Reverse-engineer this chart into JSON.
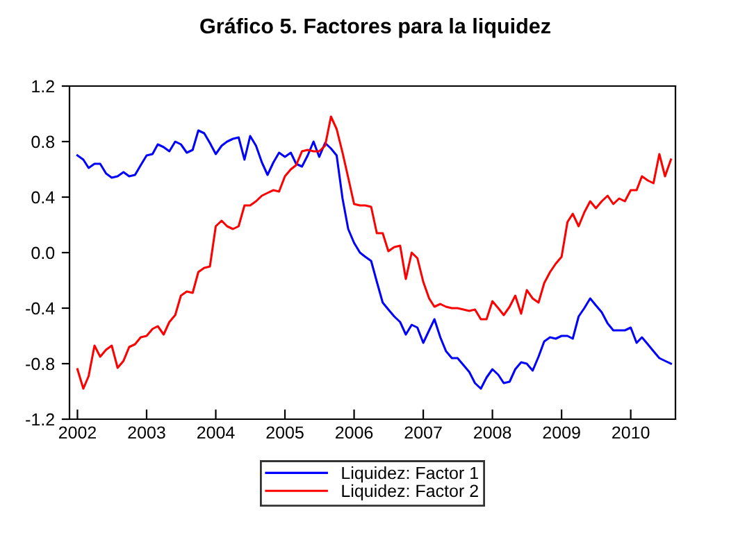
{
  "chart_data": {
    "type": "line",
    "title": "Gráfico 5. Factores para la liquidez",
    "x": [
      "2002-01",
      "2002-02",
      "2002-03",
      "2002-04",
      "2002-05",
      "2002-06",
      "2002-07",
      "2002-08",
      "2002-09",
      "2002-10",
      "2002-11",
      "2002-12",
      "2003-01",
      "2003-02",
      "2003-03",
      "2003-04",
      "2003-05",
      "2003-06",
      "2003-07",
      "2003-08",
      "2003-09",
      "2003-10",
      "2003-11",
      "2003-12",
      "2004-01",
      "2004-02",
      "2004-03",
      "2004-04",
      "2004-05",
      "2004-06",
      "2004-07",
      "2004-08",
      "2004-09",
      "2004-10",
      "2004-11",
      "2004-12",
      "2005-01",
      "2005-02",
      "2005-03",
      "2005-04",
      "2005-05",
      "2005-06",
      "2005-07",
      "2005-08",
      "2005-09",
      "2005-10",
      "2005-11",
      "2005-12",
      "2006-01",
      "2006-02",
      "2006-03",
      "2006-04",
      "2006-05",
      "2006-06",
      "2006-07",
      "2006-08",
      "2006-09",
      "2006-10",
      "2006-11",
      "2006-12",
      "2007-01",
      "2007-02",
      "2007-03",
      "2007-04",
      "2007-05",
      "2007-06",
      "2007-07",
      "2007-08",
      "2007-09",
      "2007-10",
      "2007-11",
      "2007-12",
      "2008-01",
      "2008-02",
      "2008-03",
      "2008-04",
      "2008-05",
      "2008-06",
      "2008-07",
      "2008-08",
      "2008-09",
      "2008-10",
      "2008-11",
      "2008-12",
      "2009-01",
      "2009-02",
      "2009-03",
      "2009-04",
      "2009-05",
      "2009-06",
      "2009-07",
      "2009-08",
      "2009-09",
      "2009-10",
      "2009-11",
      "2009-12",
      "2010-01",
      "2010-02",
      "2010-03",
      "2010-04",
      "2010-05",
      "2010-06",
      "2010-07",
      "2010-08"
    ],
    "series": [
      {
        "name": "Liquidez: Factor 1",
        "color": "#0000ff",
        "values": [
          0.7,
          0.67,
          0.61,
          0.64,
          0.64,
          0.57,
          0.54,
          0.55,
          0.58,
          0.55,
          0.56,
          0.63,
          0.7,
          0.71,
          0.78,
          0.76,
          0.73,
          0.8,
          0.78,
          0.72,
          0.74,
          0.88,
          0.86,
          0.79,
          0.71,
          0.77,
          0.8,
          0.82,
          0.83,
          0.67,
          0.84,
          0.77,
          0.65,
          0.56,
          0.65,
          0.72,
          0.69,
          0.72,
          0.64,
          0.62,
          0.7,
          0.8,
          0.69,
          0.79,
          0.75,
          0.7,
          0.39,
          0.17,
          0.07,
          0.0,
          -0.03,
          -0.06,
          -0.21,
          -0.36,
          -0.41,
          -0.46,
          -0.5,
          -0.59,
          -0.52,
          -0.54,
          -0.65,
          -0.56,
          -0.48,
          -0.61,
          -0.71,
          -0.76,
          -0.76,
          -0.81,
          -0.86,
          -0.94,
          -0.98,
          -0.9,
          -0.84,
          -0.88,
          -0.94,
          -0.93,
          -0.84,
          -0.79,
          -0.8,
          -0.85,
          -0.75,
          -0.64,
          -0.61,
          -0.62,
          -0.6,
          -0.6,
          -0.62,
          -0.46,
          -0.4,
          -0.33,
          -0.38,
          -0.43,
          -0.51,
          -0.56,
          -0.56,
          -0.56,
          -0.54,
          -0.65,
          -0.61,
          -0.66,
          -0.71,
          -0.76,
          -0.78,
          -0.8
        ]
      },
      {
        "name": "Liquidez: Factor 2",
        "color": "#ff0000",
        "values": [
          -0.84,
          -0.98,
          -0.89,
          -0.67,
          -0.75,
          -0.7,
          -0.67,
          -0.83,
          -0.78,
          -0.68,
          -0.66,
          -0.61,
          -0.6,
          -0.55,
          -0.53,
          -0.59,
          -0.5,
          -0.45,
          -0.31,
          -0.28,
          -0.29,
          -0.14,
          -0.11,
          -0.1,
          0.19,
          0.23,
          0.19,
          0.17,
          0.19,
          0.34,
          0.34,
          0.37,
          0.41,
          0.43,
          0.45,
          0.44,
          0.55,
          0.6,
          0.63,
          0.73,
          0.74,
          0.73,
          0.73,
          0.77,
          0.98,
          0.89,
          0.72,
          0.54,
          0.35,
          0.34,
          0.34,
          0.33,
          0.14,
          0.14,
          0.01,
          0.04,
          0.05,
          -0.19,
          0.0,
          -0.04,
          -0.21,
          -0.33,
          -0.39,
          -0.37,
          -0.39,
          -0.4,
          -0.4,
          -0.41,
          -0.42,
          -0.41,
          -0.48,
          -0.48,
          -0.35,
          -0.4,
          -0.45,
          -0.39,
          -0.31,
          -0.44,
          -0.27,
          -0.33,
          -0.36,
          -0.22,
          -0.14,
          -0.08,
          -0.03,
          0.22,
          0.28,
          0.19,
          0.29,
          0.37,
          0.32,
          0.37,
          0.41,
          0.35,
          0.39,
          0.37,
          0.45,
          0.45,
          0.55,
          0.52,
          0.5,
          0.71,
          0.55,
          0.67
        ]
      }
    ],
    "xlim": [
      "2001-11-20",
      "2010-08-25"
    ],
    "xticks": [
      "2002",
      "2003",
      "2004",
      "2005",
      "2006",
      "2007",
      "2008",
      "2009",
      "2010"
    ],
    "ylim": [
      -1.2,
      1.2
    ],
    "yticks": [
      {
        "value": -1.2,
        "label": "-1.2"
      },
      {
        "value": -0.8,
        "label": "-0.8"
      },
      {
        "value": -0.4,
        "label": "-0.4"
      },
      {
        "value": 0.0,
        "label": "0.0"
      },
      {
        "value": 0.4,
        "label": "0.4"
      },
      {
        "value": 0.8,
        "label": "0.8"
      },
      {
        "value": 1.2,
        "label": "1.2"
      }
    ],
    "grid": false,
    "legend": "bottom",
    "marker": "none",
    "line_style": "solid"
  }
}
